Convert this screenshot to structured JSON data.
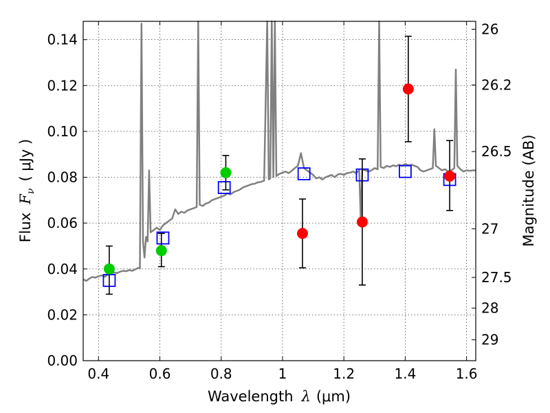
{
  "chart_data": {
    "type": "scatter",
    "title": "",
    "xlabel_text": "Wavelength",
    "xlabel_symbol": "λ",
    "xlabel_unit": "(μm)",
    "ylabel_text": "Flux",
    "ylabel_symbol": "F",
    "ylabel_subscript": "ν",
    "ylabel_unit": "( μJy )",
    "y2label": "Magnitude (AB)",
    "xlim": [
      0.35,
      1.63
    ],
    "ylim": [
      0.0,
      0.148
    ],
    "grid": true,
    "x_ticks": [
      {
        "value": 0.4,
        "label": "0.4"
      },
      {
        "value": 0.6,
        "label": "0.6"
      },
      {
        "value": 0.8,
        "label": "0.8"
      },
      {
        "value": 1.0,
        "label": "1"
      },
      {
        "value": 1.2,
        "label": "1.2"
      },
      {
        "value": 1.4,
        "label": "1.4"
      },
      {
        "value": 1.6,
        "label": "1.6"
      }
    ],
    "y_ticks": [
      {
        "value": 0.0,
        "label": "0.00"
      },
      {
        "value": 0.02,
        "label": "0.02"
      },
      {
        "value": 0.04,
        "label": "0.04"
      },
      {
        "value": 0.06,
        "label": "0.06"
      },
      {
        "value": 0.08,
        "label": "0.08"
      },
      {
        "value": 0.1,
        "label": "0.10"
      },
      {
        "value": 0.12,
        "label": "0.12"
      },
      {
        "value": 0.14,
        "label": "0.14"
      }
    ],
    "y2_ticks": [
      {
        "mag": 26.0,
        "label": "26"
      },
      {
        "mag": 26.2,
        "label": "26.2"
      },
      {
        "mag": 26.5,
        "label": "26.5"
      },
      {
        "mag": 27.0,
        "label": "27"
      },
      {
        "mag": 27.5,
        "label": "27.5"
      },
      {
        "mag": 28.0,
        "label": "28"
      },
      {
        "mag": 29.0,
        "label": "29"
      }
    ],
    "colors": {
      "spectrum": "#808080",
      "green_points": "#00cc00",
      "red_points": "#ff0000",
      "model_boxes": "#0000ff",
      "errorbar": "#000000"
    },
    "series": [
      {
        "style": "line",
        "points": [
          [
            0.35,
            0.0355
          ],
          [
            0.36,
            0.0348
          ],
          [
            0.37,
            0.0358
          ],
          [
            0.38,
            0.0365
          ],
          [
            0.39,
            0.0362
          ],
          [
            0.4,
            0.0368
          ],
          [
            0.41,
            0.0372
          ],
          [
            0.42,
            0.0366
          ],
          [
            0.43,
            0.0375
          ],
          [
            0.44,
            0.0378
          ],
          [
            0.45,
            0.0385
          ],
          [
            0.46,
            0.0382
          ],
          [
            0.47,
            0.0388
          ],
          [
            0.48,
            0.0392
          ],
          [
            0.49,
            0.039
          ],
          [
            0.5,
            0.0395
          ],
          [
            0.51,
            0.0392
          ],
          [
            0.52,
            0.0398
          ],
          [
            0.53,
            0.0405
          ],
          [
            0.535,
            0.0402
          ],
          [
            0.54,
            0.147
          ],
          [
            0.545,
            0.052
          ],
          [
            0.55,
            0.045
          ],
          [
            0.555,
            0.054
          ],
          [
            0.56,
            0.052
          ],
          [
            0.565,
            0.083
          ],
          [
            0.57,
            0.056
          ],
          [
            0.58,
            0.057
          ],
          [
            0.59,
            0.058
          ],
          [
            0.6,
            0.057
          ],
          [
            0.61,
            0.059
          ],
          [
            0.62,
            0.06
          ],
          [
            0.63,
            0.061
          ],
          [
            0.64,
            0.062
          ],
          [
            0.65,
            0.066
          ],
          [
            0.66,
            0.064
          ],
          [
            0.67,
            0.065
          ],
          [
            0.68,
            0.0645
          ],
          [
            0.69,
            0.0655
          ],
          [
            0.7,
            0.066
          ],
          [
            0.71,
            0.0665
          ],
          [
            0.72,
            0.067
          ],
          [
            0.725,
            0.148
          ],
          [
            0.73,
            0.068
          ],
          [
            0.74,
            0.0675
          ],
          [
            0.75,
            0.0685
          ],
          [
            0.76,
            0.069
          ],
          [
            0.77,
            0.07
          ],
          [
            0.78,
            0.0705
          ],
          [
            0.79,
            0.071
          ],
          [
            0.8,
            0.0715
          ],
          [
            0.81,
            0.072
          ],
          [
            0.82,
            0.073
          ],
          [
            0.83,
            0.0725
          ],
          [
            0.84,
            0.0735
          ],
          [
            0.85,
            0.074
          ],
          [
            0.86,
            0.0745
          ],
          [
            0.87,
            0.0755
          ],
          [
            0.88,
            0.076
          ],
          [
            0.89,
            0.0765
          ],
          [
            0.9,
            0.077
          ],
          [
            0.91,
            0.0772
          ],
          [
            0.92,
            0.0778
          ],
          [
            0.93,
            0.078
          ],
          [
            0.94,
            0.0785
          ],
          [
            0.95,
            0.148
          ],
          [
            0.955,
            0.079
          ],
          [
            0.96,
            0.0795
          ],
          [
            0.965,
            0.148
          ],
          [
            0.97,
            0.08
          ],
          [
            0.975,
            0.148
          ],
          [
            0.98,
            0.0805
          ],
          [
            0.99,
            0.0815
          ],
          [
            1.0,
            0.082
          ],
          [
            1.01,
            0.0825
          ],
          [
            1.02,
            0.0818
          ],
          [
            1.03,
            0.0828
          ],
          [
            1.04,
            0.084
          ],
          [
            1.05,
            0.085
          ],
          [
            1.06,
            0.0905
          ],
          [
            1.07,
            0.084
          ],
          [
            1.08,
            0.083
          ],
          [
            1.09,
            0.082
          ],
          [
            1.1,
            0.081
          ],
          [
            1.11,
            0.0795
          ],
          [
            1.12,
            0.08
          ],
          [
            1.13,
            0.079
          ],
          [
            1.14,
            0.08
          ],
          [
            1.15,
            0.0805
          ],
          [
            1.16,
            0.081
          ],
          [
            1.17,
            0.08
          ],
          [
            1.18,
            0.0812
          ],
          [
            1.19,
            0.0815
          ],
          [
            1.2,
            0.081
          ],
          [
            1.21,
            0.0818
          ],
          [
            1.22,
            0.082
          ],
          [
            1.23,
            0.0825
          ],
          [
            1.24,
            0.0818
          ],
          [
            1.25,
            0.083
          ],
          [
            1.255,
            0.062
          ],
          [
            1.26,
            0.0835
          ],
          [
            1.27,
            0.083
          ],
          [
            1.28,
            0.0825
          ],
          [
            1.29,
            0.083
          ],
          [
            1.3,
            0.084
          ],
          [
            1.31,
            0.0835
          ],
          [
            1.315,
            0.148
          ],
          [
            1.32,
            0.0845
          ],
          [
            1.33,
            0.084
          ],
          [
            1.34,
            0.085
          ],
          [
            1.35,
            0.0845
          ],
          [
            1.36,
            0.0852
          ],
          [
            1.37,
            0.0848
          ],
          [
            1.38,
            0.0855
          ],
          [
            1.39,
            0.085
          ],
          [
            1.4,
            0.0858
          ],
          [
            1.41,
            0.0852
          ],
          [
            1.42,
            0.0855
          ],
          [
            1.43,
            0.085
          ],
          [
            1.44,
            0.0845
          ],
          [
            1.45,
            0.083
          ],
          [
            1.46,
            0.0825
          ],
          [
            1.47,
            0.083
          ],
          [
            1.48,
            0.0835
          ],
          [
            1.49,
            0.084
          ],
          [
            1.495,
            0.101
          ],
          [
            1.5,
            0.085
          ],
          [
            1.51,
            0.084
          ],
          [
            1.52,
            0.083
          ],
          [
            1.53,
            0.0835
          ],
          [
            1.54,
            0.0825
          ],
          [
            1.55,
            0.083
          ],
          [
            1.56,
            0.084
          ],
          [
            1.565,
            0.127
          ],
          [
            1.57,
            0.085
          ],
          [
            1.58,
            0.0835
          ],
          [
            1.59,
            0.0825
          ],
          [
            1.6,
            0.083
          ],
          [
            1.61,
            0.0828
          ],
          [
            1.62,
            0.083
          ],
          [
            1.63,
            0.083
          ]
        ]
      },
      {
        "style": "circle",
        "color": "green",
        "points": [
          {
            "x": 0.435,
            "y": 0.04,
            "lo": 0.029,
            "hi": 0.05
          },
          {
            "x": 0.605,
            "y": 0.048,
            "lo": 0.041,
            "hi": 0.0555
          },
          {
            "x": 0.815,
            "y": 0.082,
            "lo": 0.0745,
            "hi": 0.0895
          }
        ]
      },
      {
        "style": "circle",
        "color": "red",
        "points": [
          {
            "x": 1.065,
            "y": 0.0555,
            "lo": 0.0405,
            "hi": 0.0705
          },
          {
            "x": 1.26,
            "y": 0.0605,
            "lo": 0.033,
            "hi": 0.088
          },
          {
            "x": 1.41,
            "y": 0.1185,
            "lo": 0.0955,
            "hi": 0.1415
          },
          {
            "x": 1.545,
            "y": 0.0805,
            "lo": 0.0655,
            "hi": 0.096
          }
        ]
      },
      {
        "style": "open-square",
        "color": "blue",
        "points": [
          {
            "x": 0.435,
            "y": 0.035
          },
          {
            "x": 0.61,
            "y": 0.0535
          },
          {
            "x": 0.81,
            "y": 0.0755
          },
          {
            "x": 1.07,
            "y": 0.0815
          },
          {
            "x": 1.26,
            "y": 0.081
          },
          {
            "x": 1.4,
            "y": 0.0825
          },
          {
            "x": 1.545,
            "y": 0.079
          }
        ]
      }
    ]
  }
}
